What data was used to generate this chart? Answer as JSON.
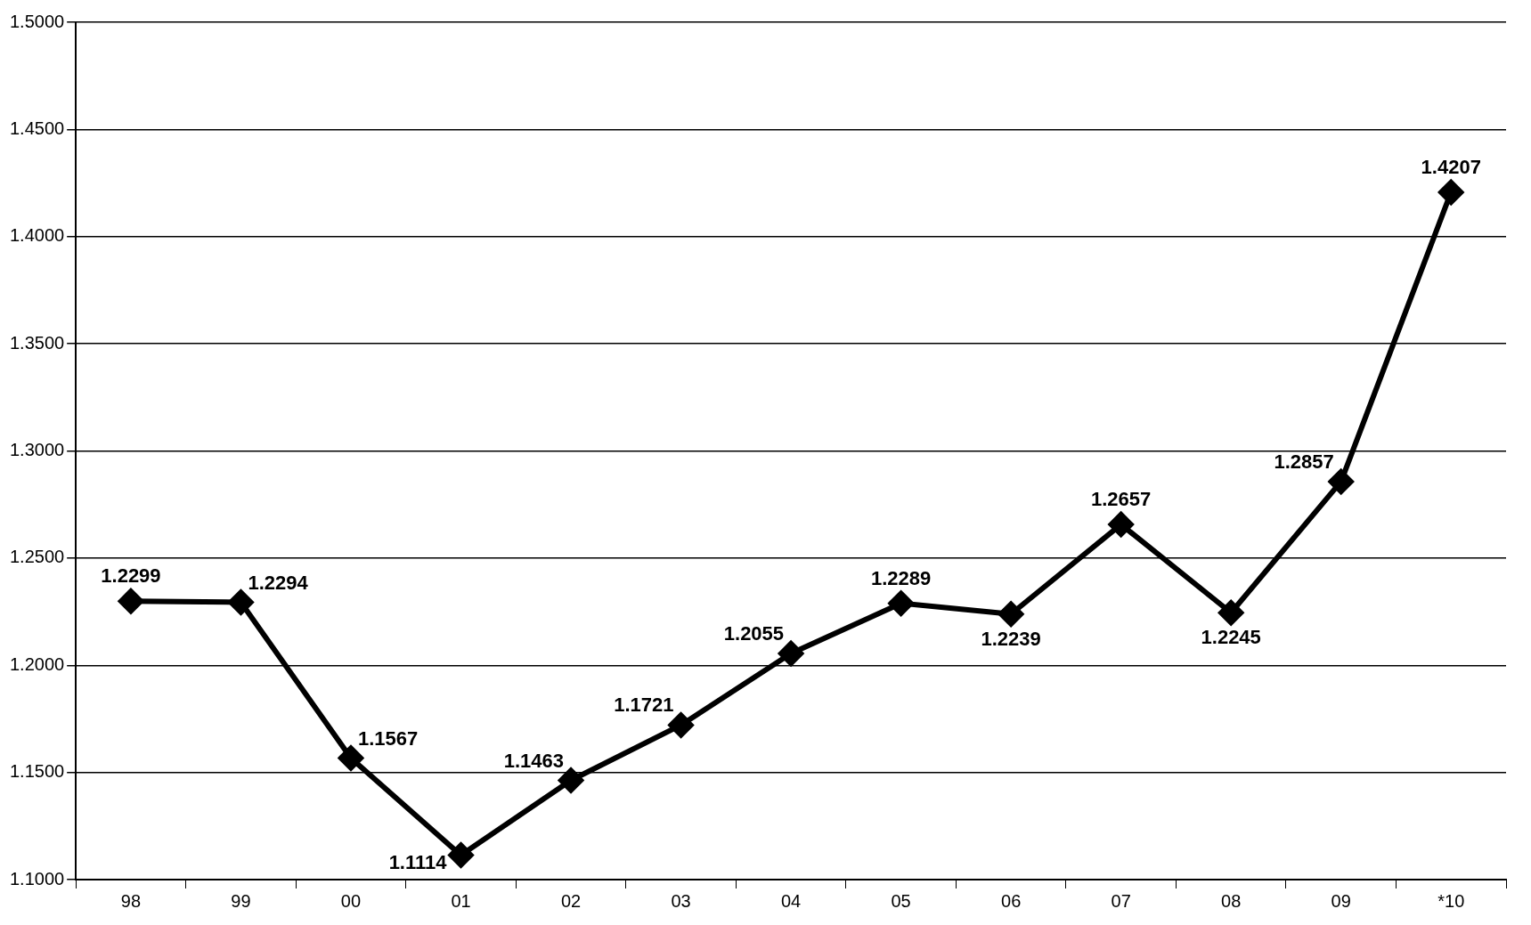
{
  "chart_data": {
    "type": "line",
    "categories": [
      "98",
      "99",
      "00",
      "01",
      "02",
      "03",
      "04",
      "05",
      "06",
      "07",
      "08",
      "09",
      "*10"
    ],
    "series": [
      {
        "color": "#000000",
        "values": [
          1.2299,
          1.2294,
          1.1567,
          1.1114,
          1.1463,
          1.1721,
          1.2055,
          1.2289,
          1.2239,
          1.2657,
          1.2245,
          1.2857,
          1.4207
        ]
      }
    ],
    "ylim": [
      1.1,
      1.5
    ],
    "yticks": [
      {
        "value": 1.1,
        "label": "1.1000"
      },
      {
        "value": 1.15,
        "label": "1.1500"
      },
      {
        "value": 1.2,
        "label": "1.2000"
      },
      {
        "value": 1.25,
        "label": "1.2500"
      },
      {
        "value": 1.3,
        "label": "1.3000"
      },
      {
        "value": 1.35,
        "label": "1.3500"
      },
      {
        "value": 1.4,
        "label": "1.4000"
      },
      {
        "value": 1.45,
        "label": "1.4500"
      },
      {
        "value": 1.5,
        "label": "1.5000"
      }
    ],
    "grid": "y",
    "legend": false,
    "marker": "diamond",
    "line_style": "solid",
    "data_labels": true
  }
}
